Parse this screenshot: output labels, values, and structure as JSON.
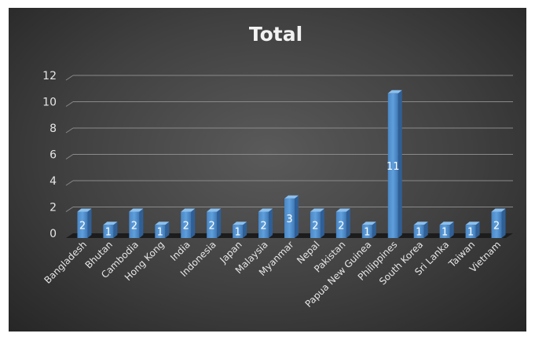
{
  "chart_data": {
    "type": "bar",
    "title": "Total",
    "categories": [
      "Bangladesh",
      "Bhutan",
      "Cambodia",
      "Hong Kong",
      "India",
      "Indonesia",
      "Japan",
      "Malaysia",
      "Myanmar",
      "Nepal",
      "Pakistan",
      "Papua New Guinea",
      "Philippines",
      "South Korea",
      "Sri Lanka",
      "Taiwan",
      "Vietnam"
    ],
    "values": [
      2,
      1,
      2,
      1,
      2,
      2,
      1,
      2,
      3,
      2,
      2,
      1,
      11,
      1,
      1,
      1,
      2
    ],
    "yticks": [
      "0",
      "2",
      "4",
      "6",
      "8",
      "10",
      "12"
    ],
    "ylim": [
      0,
      12
    ],
    "grid": true,
    "legend": "none",
    "bar_color": "#5b9bd5"
  }
}
